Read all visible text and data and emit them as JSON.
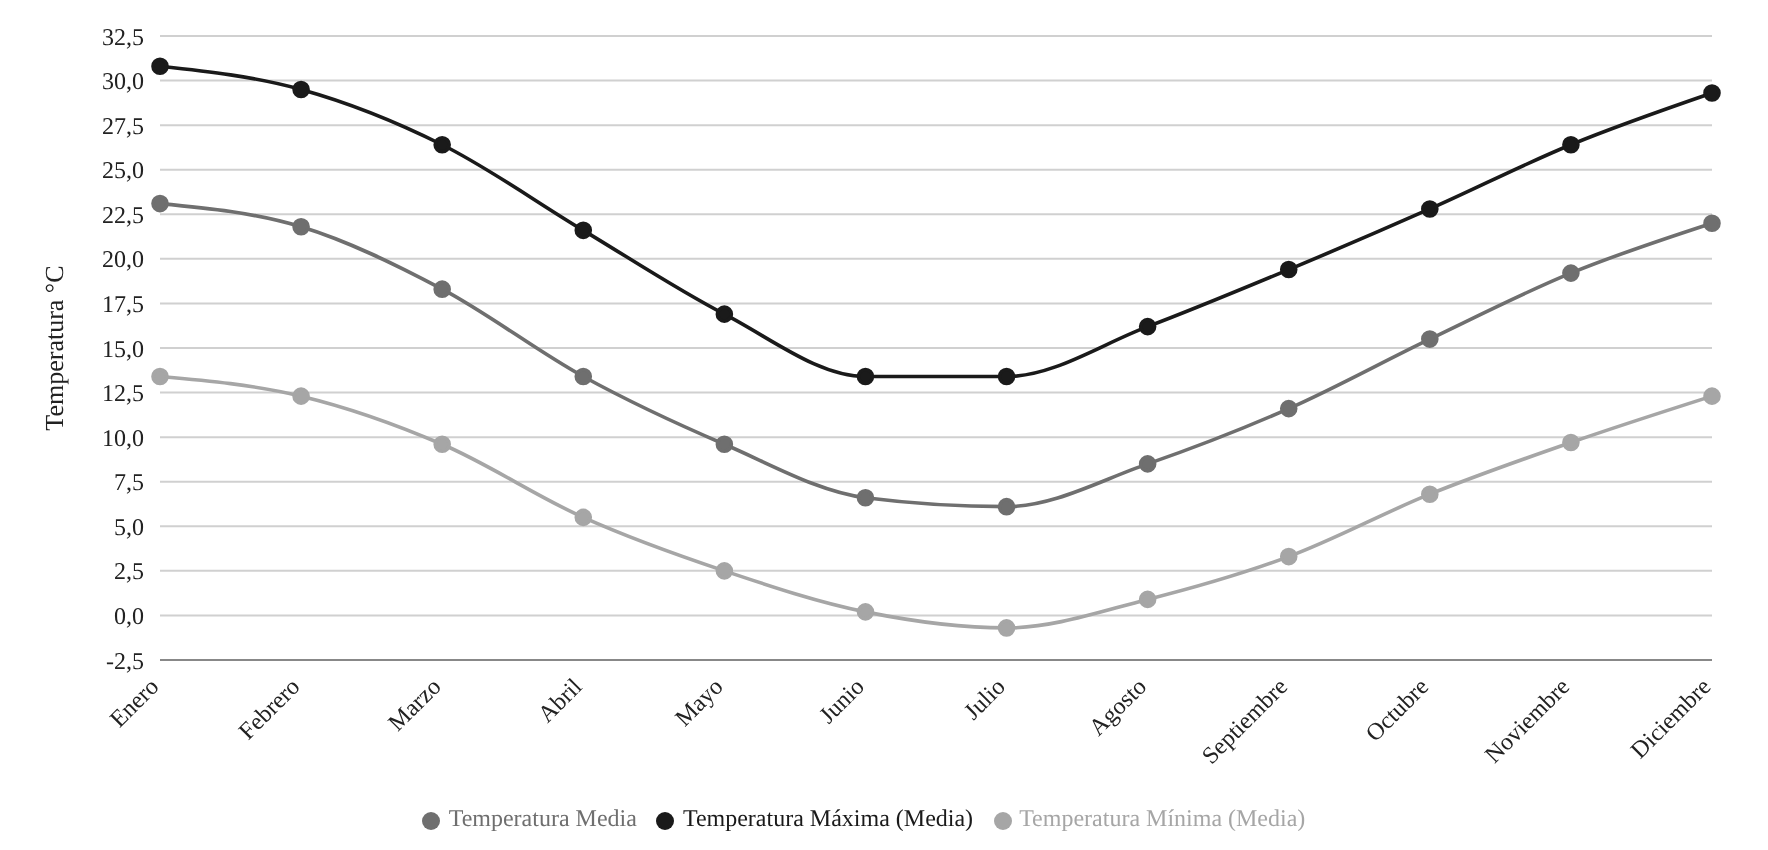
{
  "chart_data": {
    "type": "line",
    "ylabel": "Temperatura °C",
    "categories": [
      "Enero",
      "Febrero",
      "Marzo",
      "Abril",
      "Mayo",
      "Junio",
      "Julio",
      "Agosto",
      "Septiembre",
      "Octubre",
      "Noviembre",
      "Diciembre"
    ],
    "series": [
      {
        "name": "Temperatura Máxima (Media)",
        "color": "#1a1a1a",
        "values": [
          30.8,
          29.5,
          26.4,
          21.6,
          16.9,
          13.4,
          13.4,
          16.2,
          19.4,
          22.8,
          26.4,
          29.3
        ]
      },
      {
        "name": "Temperatura Mínima (Media)",
        "color": "#a6a6a6",
        "values": [
          13.4,
          12.3,
          9.6,
          5.5,
          2.5,
          0.2,
          -0.7,
          0.9,
          3.3,
          6.8,
          9.7,
          12.3
        ]
      },
      {
        "name": "Temperatura Media",
        "color": "#6f6f6f",
        "values": [
          23.1,
          21.8,
          18.3,
          13.4,
          9.6,
          6.6,
          6.1,
          8.5,
          11.6,
          15.5,
          19.2,
          22.0
        ]
      }
    ],
    "ylim": [
      -2.5,
      32.5
    ],
    "yticks": [
      {
        "value": -2.5,
        "label": "-2,5"
      },
      {
        "value": 0,
        "label": "0,0"
      },
      {
        "value": 2.5,
        "label": "2,5"
      },
      {
        "value": 5,
        "label": "5,0"
      },
      {
        "value": 7.5,
        "label": "7,5"
      },
      {
        "value": 10,
        "label": "10,0"
      },
      {
        "value": 12.5,
        "label": "12,5"
      },
      {
        "value": 15,
        "label": "15,0"
      },
      {
        "value": 17.5,
        "label": "17,5"
      },
      {
        "value": 20,
        "label": "20,0"
      },
      {
        "value": 22.5,
        "label": "22,5"
      },
      {
        "value": 25,
        "label": "25,0"
      },
      {
        "value": 27.5,
        "label": "27,5"
      },
      {
        "value": 30,
        "label": "30,0"
      },
      {
        "value": 32.5,
        "label": "32,5"
      }
    ],
    "grid": "y",
    "legend": "bottom",
    "marker": "circle",
    "line_style": "solid"
  }
}
